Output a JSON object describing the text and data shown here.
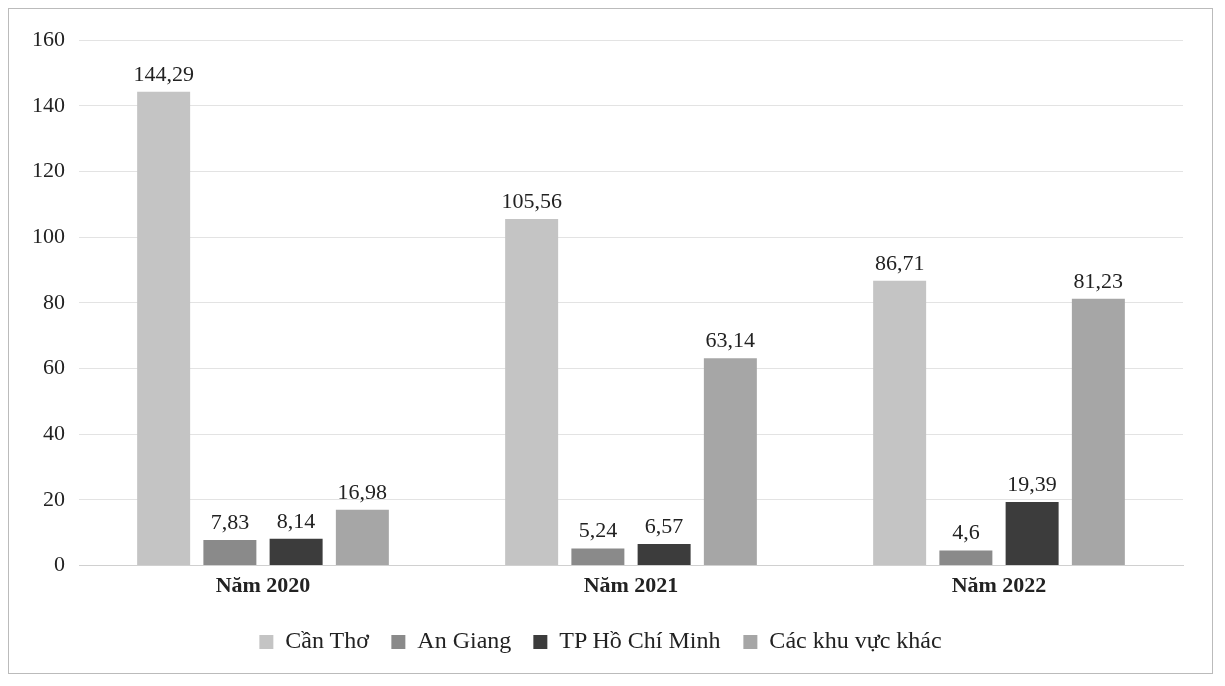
{
  "chart_data": {
    "type": "bar",
    "categories": [
      "Năm 2020",
      "Năm 2021",
      "Năm 2022"
    ],
    "series": [
      {
        "name": "Cần Thơ",
        "color": "#c4c4c4",
        "values": [
          144.29,
          105.56,
          86.71
        ],
        "value_labels": [
          "144,29",
          "105,56",
          "86,71"
        ]
      },
      {
        "name": "An Giang",
        "color": "#8a8a8a",
        "values": [
          7.83,
          5.24,
          4.6
        ],
        "value_labels": [
          "7,83",
          "5,24",
          "4,6"
        ]
      },
      {
        "name": "TP Hồ Chí Minh",
        "color": "#3c3c3c",
        "values": [
          8.14,
          6.57,
          19.39
        ],
        "value_labels": [
          "8,14",
          "6,57",
          "19,39"
        ]
      },
      {
        "name": "Các khu vực khác",
        "color": "#a6a6a6",
        "values": [
          16.98,
          63.14,
          81.23
        ],
        "value_labels": [
          "16,98",
          "63,14",
          "81,23"
        ]
      }
    ],
    "ylim": [
      0,
      160
    ],
    "yticks": [
      0,
      20,
      40,
      60,
      80,
      100,
      120,
      140,
      160
    ],
    "grid": "y",
    "legend": "bottom"
  }
}
